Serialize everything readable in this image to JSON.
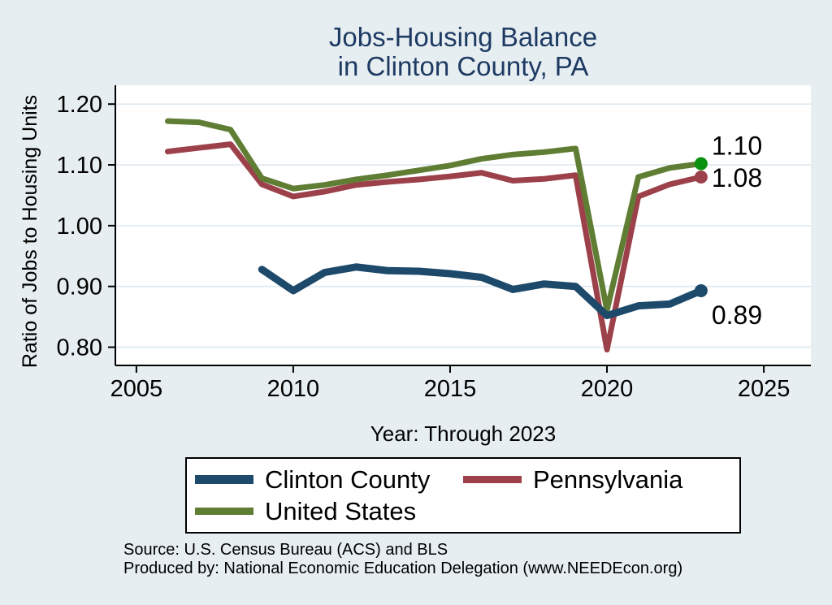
{
  "title": {
    "line1": "Jobs-Housing Balance",
    "line2": "in Clinton County, PA"
  },
  "chart_data": {
    "type": "line",
    "title": "Jobs-Housing Balance in Clinton County, PA",
    "xlabel": "Year: Through 2023",
    "ylabel": "Ratio of Jobs to Housing Units",
    "xlim": [
      2004.33,
      2026.5
    ],
    "ylim": [
      0.77,
      1.231
    ],
    "x_ticks": [
      2005,
      2010,
      2015,
      2020,
      2025
    ],
    "y_ticks": [
      0.8,
      0.9,
      1.0,
      1.1,
      1.2
    ],
    "grid": "horizontal",
    "legend_position": "bottom",
    "series": [
      {
        "name": "Clinton County",
        "color": "#1d4a6b",
        "line_width": 9,
        "end_label": "0.89",
        "end_dot_color": "#1d4a6b",
        "x": [
          2009,
          2010,
          2011,
          2012,
          2013,
          2014,
          2015,
          2016,
          2017,
          2018,
          2019,
          2020,
          2021,
          2022,
          2023
        ],
        "values": [
          0.928,
          0.893,
          0.923,
          0.932,
          0.926,
          0.925,
          0.921,
          0.915,
          0.895,
          0.904,
          0.9,
          0.852,
          0.868,
          0.871,
          0.893
        ]
      },
      {
        "name": "Pennsylvania",
        "color": "#9c414a",
        "line_width": 7,
        "end_label": "1.08",
        "end_dot_color": "#9c414a",
        "x": [
          2006,
          2007,
          2008,
          2009,
          2010,
          2011,
          2012,
          2013,
          2014,
          2015,
          2016,
          2017,
          2018,
          2019,
          2020,
          2021,
          2022,
          2023
        ],
        "values": [
          1.122,
          1.128,
          1.134,
          1.068,
          1.048,
          1.056,
          1.067,
          1.072,
          1.076,
          1.081,
          1.087,
          1.074,
          1.077,
          1.083,
          0.796,
          1.048,
          1.068,
          1.08
        ]
      },
      {
        "name": "United States",
        "color": "#5f7d33",
        "line_width": 7,
        "end_label": "1.10",
        "end_dot_color": "#0a910f",
        "x": [
          2006,
          2007,
          2008,
          2009,
          2010,
          2011,
          2012,
          2013,
          2014,
          2015,
          2016,
          2017,
          2018,
          2019,
          2020,
          2021,
          2022,
          2023
        ],
        "values": [
          1.172,
          1.17,
          1.158,
          1.078,
          1.061,
          1.067,
          1.076,
          1.083,
          1.091,
          1.099,
          1.11,
          1.117,
          1.121,
          1.127,
          0.861,
          1.08,
          1.095,
          1.102
        ]
      }
    ]
  },
  "notes": {
    "source_line1": "Source: U.S. Census Bureau (ACS) and BLS",
    "source_line2": "Produced by: National Economic Education Delegation (www.NEEDEcon.org)"
  },
  "colors": {
    "background": "#e6eef1",
    "title": "#1e3a63",
    "plot_background": "#ffffff",
    "gridline": "#dde9f0",
    "axis": "#000000"
  }
}
